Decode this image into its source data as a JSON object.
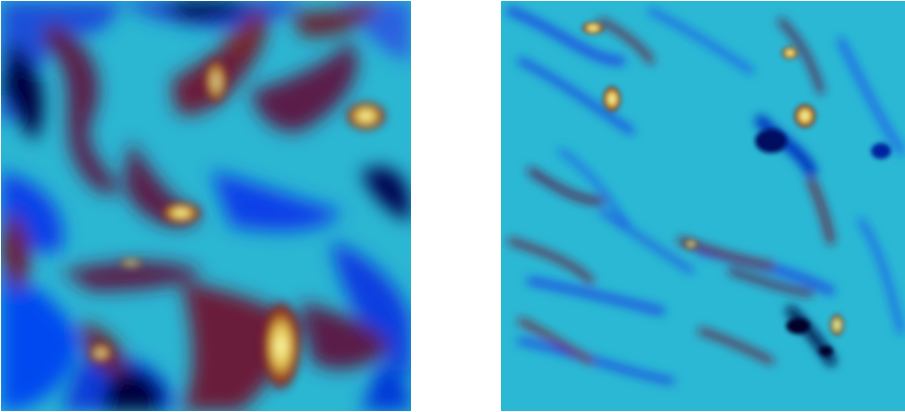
{
  "figure": {
    "panels": [
      {
        "id": "left",
        "colormap": [
          "#00003a",
          "#0044ff",
          "#1e90ff",
          "#29c2d6",
          "#5a1a4a",
          "#7a1a1a",
          "#c8a040",
          "#ffff9a"
        ]
      },
      {
        "id": "right",
        "colormap": [
          "#00003a",
          "#0044ff",
          "#1e90ff",
          "#29c2d6",
          "#5a1a4a",
          "#7a1a1a",
          "#c8a040",
          "#ffff9a"
        ]
      }
    ]
  }
}
